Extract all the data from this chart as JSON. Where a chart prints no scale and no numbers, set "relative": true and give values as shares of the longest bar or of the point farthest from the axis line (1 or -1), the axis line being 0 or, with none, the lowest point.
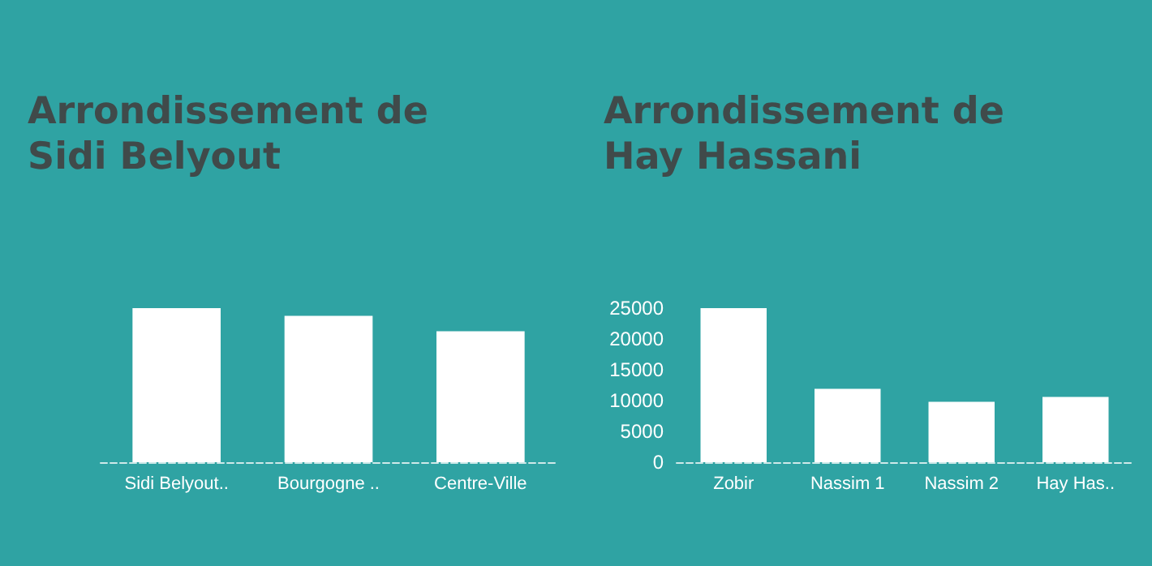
{
  "chart_data": [
    {
      "type": "bar",
      "title": "Arrondissement de\nSidi Belyout",
      "categories": [
        "Sidi Belyout..",
        "Bourgogne ..",
        "Centre-Ville"
      ],
      "values": [
        1,
        0.95,
        0.85
      ],
      "color": "#ffffff",
      "relative": true,
      "grid": false
    },
    {
      "type": "bar",
      "title": "Arrondissement de\nHay Hassani",
      "categories": [
        "Zobir",
        "Nassim 1",
        "Nassim 2",
        "Hay Has.."
      ],
      "values": [
        25000,
        11900,
        9800,
        10600
      ],
      "color": "#ffffff",
      "ylim": [
        0,
        25000
      ],
      "yticks": [
        0,
        5000,
        10000,
        15000,
        20000,
        25000
      ],
      "grid": false
    }
  ]
}
